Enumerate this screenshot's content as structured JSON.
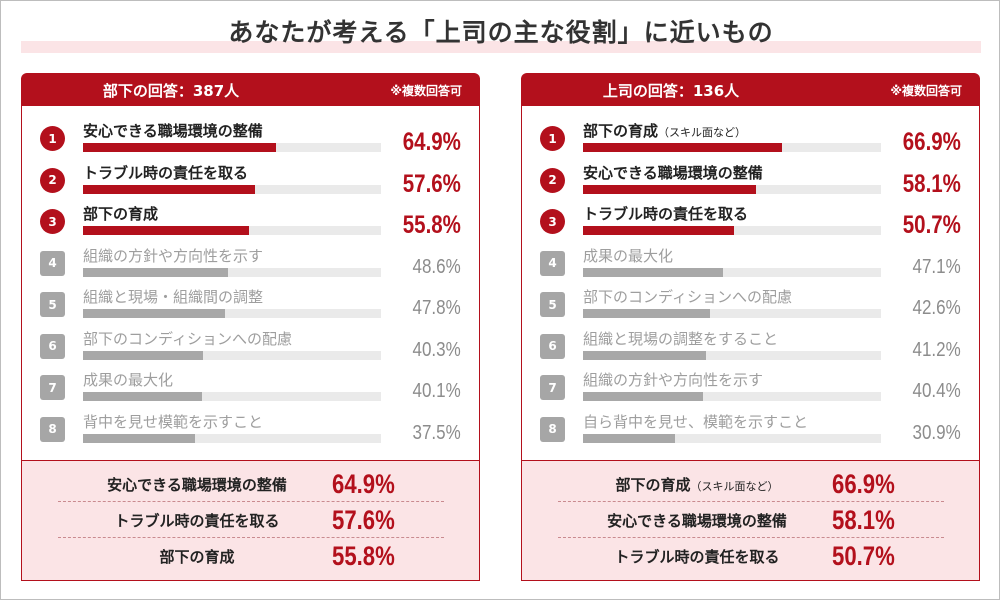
{
  "title": "あなたが考える「上司の主な役割」に近いもの",
  "colors": {
    "accent": "#b3101c",
    "summary_bg": "#fbe4e6",
    "bar_other": "#a8a8a8",
    "track": "#eaeaea"
  },
  "chart_data": [
    {
      "type": "bar",
      "orientation": "horizontal",
      "title": "部下の回答：387人",
      "note": "※複数回答可",
      "xlim": [
        0,
        100
      ],
      "items": [
        {
          "rank": "1",
          "label": "安心できる職場環境の整備",
          "sub": "",
          "value": 64.9,
          "display": "64.9%"
        },
        {
          "rank": "2",
          "label": "トラブル時の責任を取る",
          "sub": "",
          "value": 57.6,
          "display": "57.6%"
        },
        {
          "rank": "3",
          "label": "部下の育成",
          "sub": "",
          "value": 55.8,
          "display": "55.8%"
        },
        {
          "rank": "4",
          "label": "組織の方針や方向性を示す",
          "sub": "",
          "value": 48.6,
          "display": "48.6%"
        },
        {
          "rank": "5",
          "label": "組織と現場・組織間の調整",
          "sub": "",
          "value": 47.8,
          "display": "47.8%"
        },
        {
          "rank": "6",
          "label": "部下のコンディションへの配慮",
          "sub": "",
          "value": 40.3,
          "display": "40.3%"
        },
        {
          "rank": "7",
          "label": "成果の最大化",
          "sub": "",
          "value": 40.1,
          "display": "40.1%"
        },
        {
          "rank": "8",
          "label": "背中を見せ模範を示すこと",
          "sub": "",
          "value": 37.5,
          "display": "37.5%"
        }
      ],
      "summary": [
        {
          "label": "安心できる職場環境の整備",
          "sub": "",
          "display": "64.9%"
        },
        {
          "label": "トラブル時の責任を取る",
          "sub": "",
          "display": "57.6%"
        },
        {
          "label": "部下の育成",
          "sub": "",
          "display": "55.8%"
        }
      ]
    },
    {
      "type": "bar",
      "orientation": "horizontal",
      "title": "上司の回答：136人",
      "note": "※複数回答可",
      "xlim": [
        0,
        100
      ],
      "items": [
        {
          "rank": "1",
          "label": "部下の育成",
          "sub": "（スキル面など）",
          "value": 66.9,
          "display": "66.9%"
        },
        {
          "rank": "2",
          "label": "安心できる職場環境の整備",
          "sub": "",
          "value": 58.1,
          "display": "58.1%"
        },
        {
          "rank": "3",
          "label": "トラブル時の責任を取る",
          "sub": "",
          "value": 50.7,
          "display": "50.7%"
        },
        {
          "rank": "4",
          "label": "成果の最大化",
          "sub": "",
          "value": 47.1,
          "display": "47.1%"
        },
        {
          "rank": "5",
          "label": "部下のコンディションへの配慮",
          "sub": "",
          "value": 42.6,
          "display": "42.6%"
        },
        {
          "rank": "6",
          "label": "組織と現場の調整をすること",
          "sub": "",
          "value": 41.2,
          "display": "41.2%"
        },
        {
          "rank": "7",
          "label": "組織の方針や方向性を示す",
          "sub": "",
          "value": 40.4,
          "display": "40.4%"
        },
        {
          "rank": "8",
          "label": "自ら背中を見せ、模範を示すこと",
          "sub": "",
          "value": 30.9,
          "display": "30.9%"
        }
      ],
      "summary": [
        {
          "label": "部下の育成",
          "sub": "（スキル面など）",
          "display": "66.9%"
        },
        {
          "label": "安心できる職場環境の整備",
          "sub": "",
          "display": "58.1%"
        },
        {
          "label": "トラブル時の責任を取る",
          "sub": "",
          "display": "50.7%"
        }
      ]
    }
  ]
}
